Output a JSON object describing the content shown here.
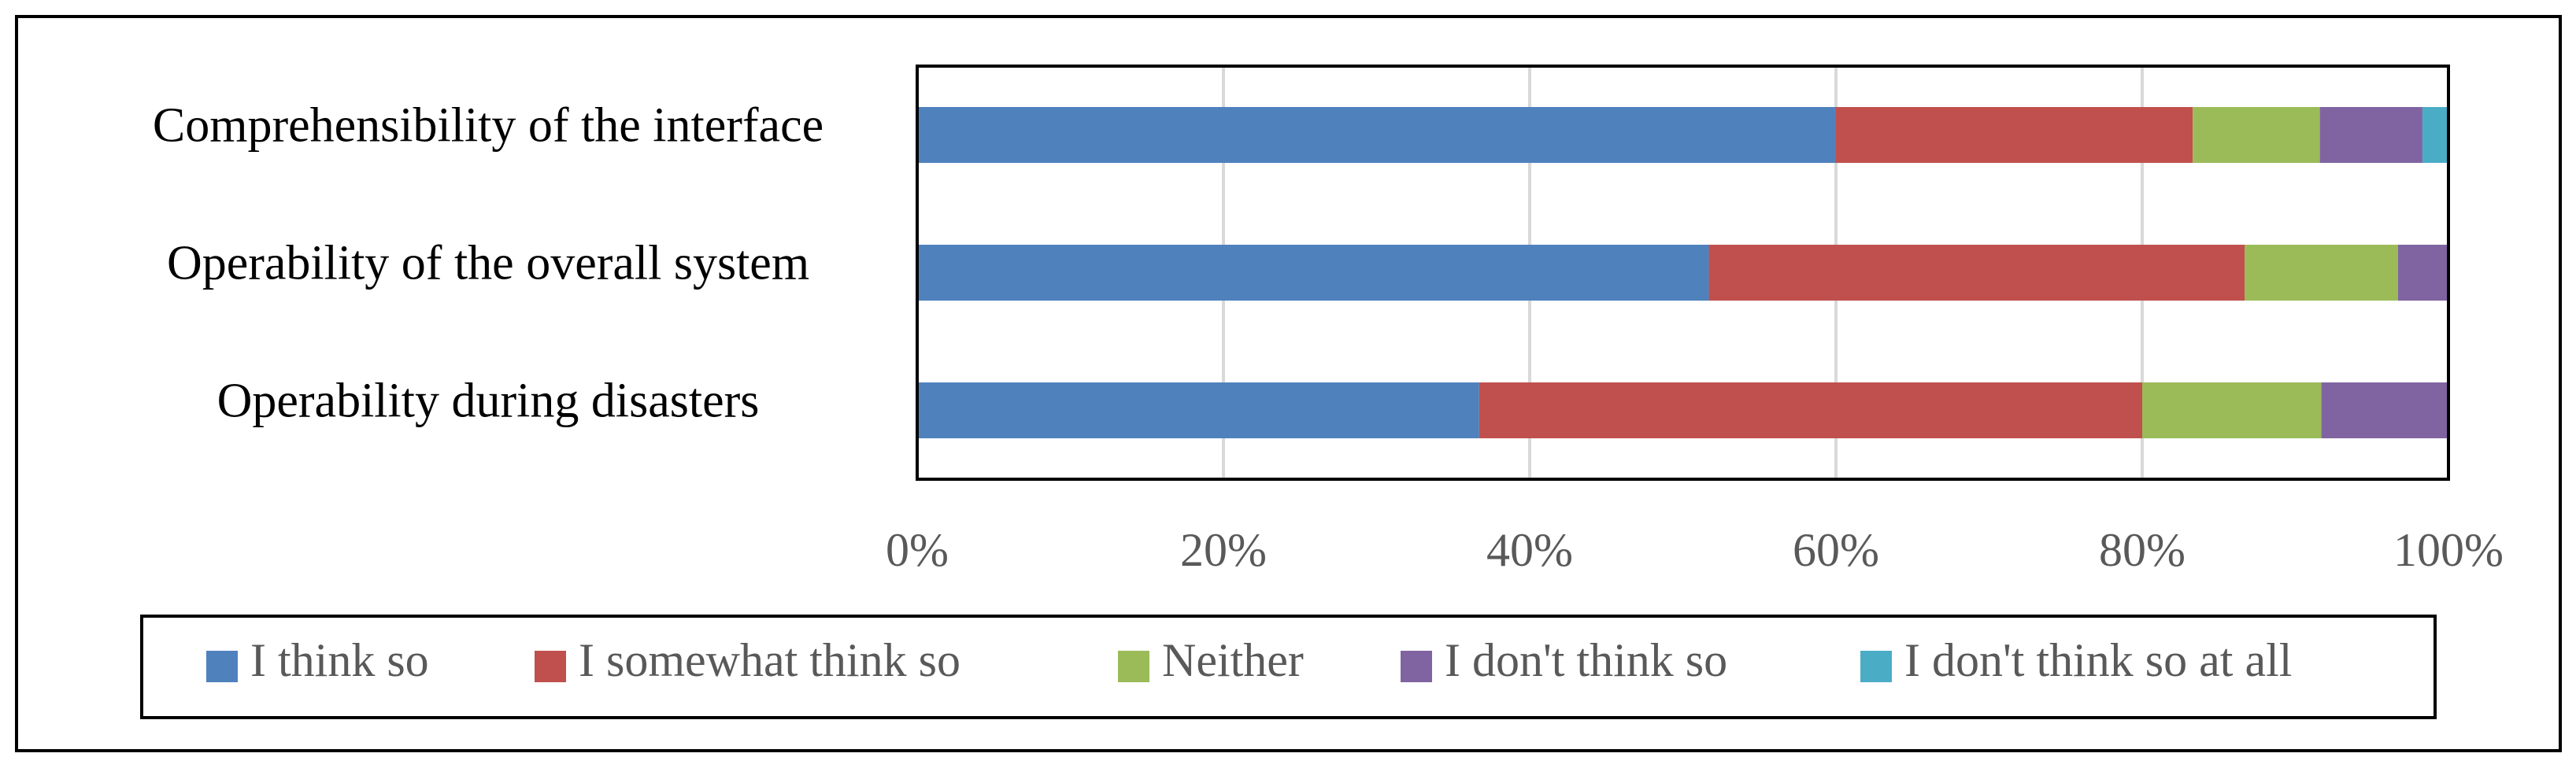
{
  "chart_data": {
    "type": "stacked-bar-horizontal",
    "categories": [
      "Comprehensibility of the interface",
      "Operability of the overall system",
      "Operability during disasters"
    ],
    "series": [
      {
        "name": "I think so",
        "color": "#4f81bd",
        "values": [
          60,
          51.7,
          36.7
        ]
      },
      {
        "name": "I somewhat think so",
        "color": "#c0504d",
        "values": [
          23.3,
          35,
          43.3
        ]
      },
      {
        "name": "Neither",
        "color": "#9bbb59",
        "values": [
          8.3,
          10,
          11.7
        ]
      },
      {
        "name": "I don't think so",
        "color": "#8064a2",
        "values": [
          6.7,
          3.3,
          8.3
        ]
      },
      {
        "name": "I don't think so at all",
        "color": "#4bacc6",
        "values": [
          1.7,
          0,
          0
        ]
      }
    ],
    "xlim": [
      0,
      100
    ],
    "xticks": [
      {
        "value": 0,
        "label": "0%"
      },
      {
        "value": 20,
        "label": "20%"
      },
      {
        "value": 40,
        "label": "40%"
      },
      {
        "value": 60,
        "label": "60%"
      },
      {
        "value": 80,
        "label": "80%"
      },
      {
        "value": 100,
        "label": "100%"
      }
    ],
    "grid": true,
    "legend": "bottom"
  }
}
